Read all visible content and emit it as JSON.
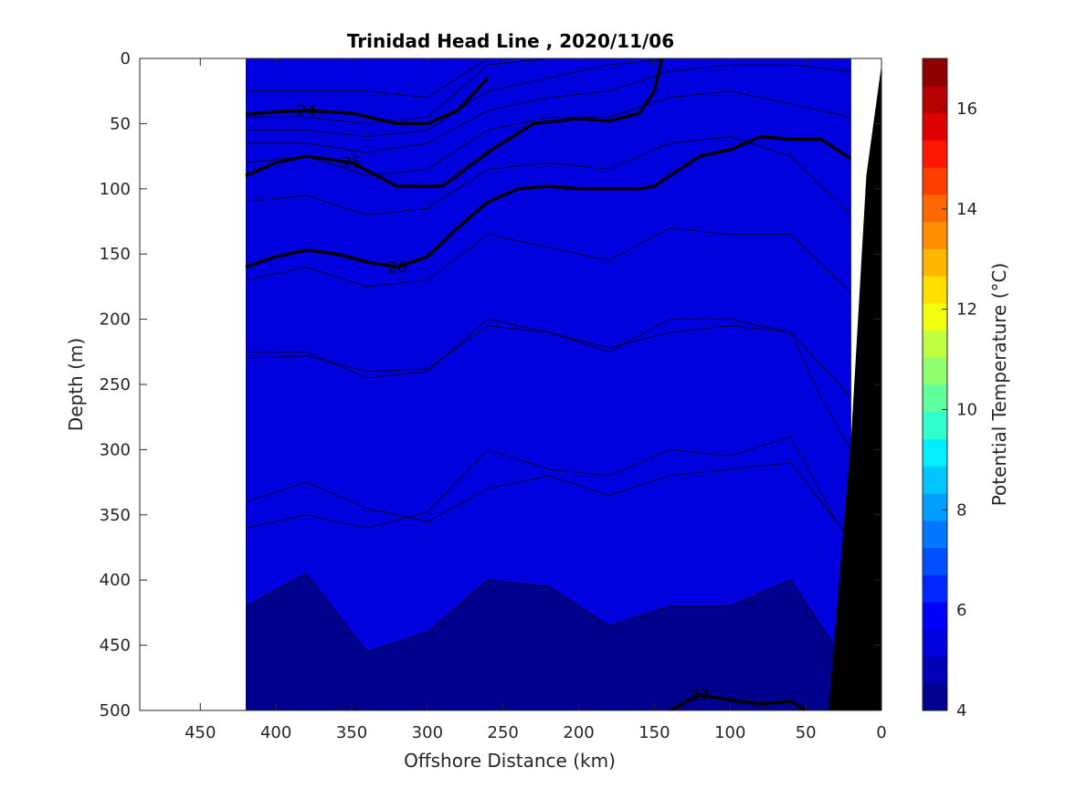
{
  "chart_data": {
    "type": "heatmap",
    "title": "Trinidad Head Line , 2020/11/06",
    "xlabel": "Offshore Distance (km)",
    "ylabel": "Depth (m)",
    "colorbar_label": "Potential Temperature (°C)",
    "xlim": [
      490,
      0
    ],
    "ylim": [
      500,
      0
    ],
    "x_reversed": true,
    "y_reversed": true,
    "xticks": [
      450,
      400,
      350,
      300,
      250,
      200,
      150,
      100,
      50,
      0
    ],
    "yticks": [
      0,
      50,
      100,
      150,
      200,
      250,
      300,
      350,
      400,
      450,
      500
    ],
    "colorbar_range": [
      4,
      17
    ],
    "colorbar_ticks": [
      4,
      6,
      8,
      10,
      12,
      14,
      16
    ],
    "colormap": [
      "#00008f",
      "#0000b7",
      "#0000df",
      "#0000ff",
      "#0027ff",
      "#004fff",
      "#0077ff",
      "#009fff",
      "#00c7ff",
      "#00efff",
      "#2fffcf",
      "#5fff9f",
      "#8fff6f",
      "#bfff3f",
      "#efff0f",
      "#ffdf00",
      "#ffb700",
      "#ff8f00",
      "#ff6700",
      "#ff3f00",
      "#ff1700",
      "#df0000",
      "#b70000",
      "#8f0000"
    ],
    "data_x_extent": [
      420,
      20
    ],
    "isotherm_depths": {
      "x": [
        420,
        380,
        340,
        300,
        260,
        220,
        180,
        140,
        100,
        60,
        20
      ],
      "values_degC": [
        16,
        14,
        12,
        11,
        10,
        9,
        8,
        7,
        6,
        5
      ],
      "depths_m": [
        [
          25,
          25,
          25,
          30,
          0,
          0,
          0,
          0,
          0,
          0,
          0
        ],
        [
          45,
          45,
          50,
          45,
          5,
          0,
          0,
          0,
          0,
          0,
          0
        ],
        [
          55,
          55,
          60,
          55,
          25,
          15,
          5,
          0,
          0,
          0,
          0
        ],
        [
          65,
          65,
          72,
          65,
          40,
          30,
          25,
          10,
          5,
          5,
          10
        ],
        [
          80,
          75,
          90,
          85,
          55,
          45,
          45,
          30,
          25,
          35,
          45
        ],
        [
          110,
          105,
          120,
          115,
          85,
          80,
          85,
          65,
          60,
          75,
          120
        ],
        [
          170,
          160,
          175,
          170,
          135,
          145,
          155,
          130,
          135,
          135,
          180
        ],
        [
          225,
          225,
          245,
          240,
          200,
          210,
          225,
          200,
          200,
          210,
          260
        ],
        [
          340,
          325,
          345,
          355,
          330,
          320,
          335,
          320,
          315,
          310,
          370
        ],
        [
          420,
          395,
          455,
          440,
          400,
          405,
          435,
          420,
          420,
          400,
          470
        ]
      ]
    },
    "contours": [
      {
        "label": "24",
        "x": [
          420,
          400,
          380,
          350,
          320,
          300,
          280,
          260
        ],
        "depth": [
          43,
          41,
          40,
          42,
          50,
          50,
          40,
          15
        ]
      },
      {
        "label": "25",
        "x": [
          420,
          400,
          380,
          350,
          320,
          290,
          260,
          230,
          200,
          180,
          160,
          150,
          145
        ],
        "depth": [
          90,
          80,
          75,
          80,
          98,
          98,
          72,
          50,
          46,
          48,
          42,
          25,
          0
        ]
      },
      {
        "label": "26",
        "x": [
          420,
          400,
          380,
          360,
          340,
          320,
          300,
          280,
          260,
          240,
          220,
          200,
          180,
          160,
          150,
          140,
          120,
          100,
          80,
          60,
          40,
          20
        ],
        "depth": [
          160,
          152,
          147,
          150,
          156,
          160,
          152,
          130,
          110,
          100,
          98,
          100,
          100,
          100,
          98,
          90,
          75,
          70,
          60,
          62,
          62,
          77
        ]
      },
      {
        "label": "27",
        "x": [
          140,
          120,
          100,
          80,
          60,
          50
        ],
        "depth": [
          500,
          488,
          492,
          495,
          493,
          500
        ]
      }
    ],
    "thin_contours": [
      {
        "x": [
          420,
          380,
          340,
          300,
          260,
          220,
          180,
          140,
          100,
          60,
          40,
          20
        ],
        "depth": [
          230,
          228,
          240,
          238,
          205,
          210,
          222,
          210,
          205,
          210,
          260,
          300
        ]
      },
      {
        "x": [
          420,
          380,
          340,
          300,
          260,
          220,
          180,
          140,
          100,
          60,
          30
        ],
        "depth": [
          360,
          350,
          360,
          348,
          300,
          315,
          320,
          300,
          305,
          290,
          355
        ]
      }
    ]
  }
}
